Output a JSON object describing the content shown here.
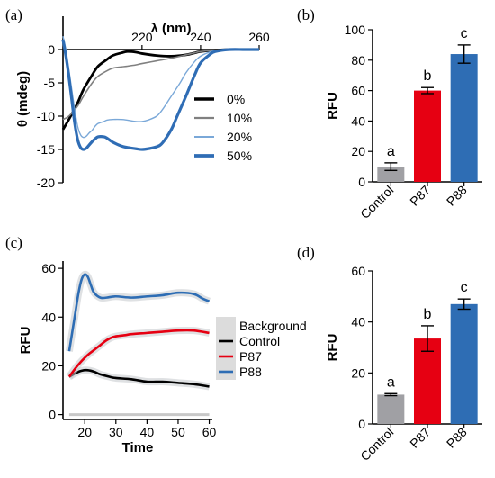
{
  "panels": {
    "a": "(a)",
    "b": "(b)",
    "c": "(c)",
    "d": "(d)"
  },
  "chart_data": [
    {
      "id": "a",
      "type": "line",
      "xlabel": "λ (nm)",
      "ylabel": "θ (mdeg)",
      "xlim": [
        193,
        260
      ],
      "ylim": [
        -20,
        5
      ],
      "xticks": [
        220,
        240,
        260
      ],
      "yticks": [
        0,
        -5,
        -10,
        -15,
        -20
      ],
      "legend_position": "right",
      "series": [
        {
          "name": "0%",
          "color": "#000000",
          "x": [
            193,
            195,
            198,
            200,
            203,
            205,
            208,
            210,
            213,
            215,
            218,
            220,
            225,
            230,
            235,
            238,
            240,
            245,
            250,
            255,
            260
          ],
          "y": [
            -12,
            -10.5,
            -8,
            -6,
            -3.8,
            -2.5,
            -1.5,
            -0.9,
            -0.5,
            -0.3,
            -0.4,
            -0.6,
            -0.9,
            -1.0,
            -0.8,
            -0.5,
            -0.3,
            -0.1,
            0,
            0,
            0
          ]
        },
        {
          "name": "10%",
          "color": "#808080",
          "x": [
            193,
            195,
            198,
            200,
            203,
            205,
            208,
            210,
            213,
            215,
            218,
            220,
            225,
            230,
            235,
            238,
            240,
            245,
            250,
            255,
            260
          ],
          "y": [
            -10.5,
            -10,
            -8.5,
            -7,
            -5,
            -4,
            -3.2,
            -2.8,
            -2.6,
            -2.5,
            -2.3,
            -2.1,
            -1.7,
            -1.3,
            -0.8,
            -0.5,
            -0.3,
            -0.1,
            0,
            0,
            0
          ]
        },
        {
          "name": "20%",
          "color": "#7aa8d8",
          "x": [
            193,
            194,
            195,
            196,
            197,
            198,
            199,
            200,
            201,
            202,
            203,
            204,
            205,
            207,
            208,
            210,
            213,
            215,
            218,
            220,
            222,
            225,
            227,
            230,
            233,
            235,
            238,
            240,
            243,
            245,
            250,
            255,
            260
          ],
          "y": [
            2,
            0,
            -3,
            -6,
            -9,
            -11.5,
            -12.8,
            -13.2,
            -13,
            -12.5,
            -12.1,
            -11.5,
            -11.1,
            -10.8,
            -10.6,
            -10.5,
            -10.5,
            -10.6,
            -10.8,
            -10.8,
            -10.6,
            -10,
            -9,
            -7,
            -5,
            -3.5,
            -1.8,
            -1,
            -0.4,
            -0.2,
            0,
            0,
            0
          ]
        },
        {
          "name": "50%",
          "color": "#2f6db5",
          "x": [
            193,
            194,
            195,
            196,
            197,
            198,
            199,
            200,
            201,
            202,
            203,
            204,
            205,
            207,
            208,
            210,
            213,
            215,
            218,
            220,
            222,
            225,
            227,
            230,
            232,
            235,
            238,
            240,
            243,
            245,
            250,
            255,
            260
          ],
          "y": [
            1.5,
            -1,
            -4,
            -7.5,
            -11,
            -13.5,
            -14.7,
            -15,
            -14.8,
            -14.3,
            -13.8,
            -13.4,
            -13.1,
            -13.1,
            -13.3,
            -13.9,
            -14.5,
            -14.7,
            -14.9,
            -15,
            -14.9,
            -14.6,
            -14,
            -12,
            -10,
            -7,
            -3.8,
            -2,
            -0.8,
            -0.3,
            0,
            0,
            0
          ]
        }
      ]
    },
    {
      "id": "b",
      "type": "bar",
      "ylabel": "RFU",
      "ylim": [
        0,
        100
      ],
      "yticks": [
        0,
        20,
        40,
        60,
        80,
        100
      ],
      "categories": [
        "Control",
        "P87",
        "P88"
      ],
      "values": [
        10,
        60,
        84
      ],
      "errors": [
        2.5,
        2,
        6
      ],
      "colors": [
        "#a0a0a4",
        "#e60012",
        "#2e6db4"
      ],
      "annotations": [
        "a",
        "b",
        "c"
      ]
    },
    {
      "id": "c",
      "type": "line",
      "xlabel": "Time",
      "ylabel": "RFU",
      "xlim": [
        13,
        61
      ],
      "ylim": [
        -2,
        63
      ],
      "xticks": [
        20,
        30,
        40,
        50,
        60
      ],
      "yticks": [
        0,
        20,
        40,
        60
      ],
      "legend_position": "right",
      "series": [
        {
          "name": "Background",
          "color": "#c8c8c8",
          "x": [
            15,
            20,
            25,
            30,
            35,
            40,
            45,
            50,
            55,
            60
          ],
          "y": [
            0,
            0,
            0,
            0,
            0,
            0,
            0,
            0,
            0,
            0
          ]
        },
        {
          "name": "Control",
          "color": "#000000",
          "x": [
            15,
            17,
            19,
            21,
            23,
            25,
            28,
            30,
            35,
            40,
            45,
            50,
            55,
            60
          ],
          "y": [
            15.5,
            17,
            18,
            18.2,
            17.6,
            16.5,
            15.5,
            15,
            14.5,
            13.5,
            13.5,
            13,
            12.5,
            11.5
          ]
        },
        {
          "name": "P87",
          "color": "#e60012",
          "x": [
            15,
            17,
            19,
            21,
            23,
            25,
            27,
            29,
            31,
            33,
            35,
            40,
            45,
            50,
            55,
            60
          ],
          "y": [
            15.5,
            19,
            22,
            24.5,
            26.5,
            28.5,
            30.5,
            31.8,
            32.3,
            32.6,
            33,
            33.5,
            34,
            34.5,
            34.5,
            33.5
          ]
        },
        {
          "name": "P88",
          "color": "#2e6db4",
          "x": [
            15,
            16,
            17,
            18,
            19,
            20,
            21,
            22,
            23,
            25,
            27,
            30,
            35,
            40,
            45,
            50,
            55,
            58,
            60
          ],
          "y": [
            26,
            34,
            42,
            50,
            55.5,
            57.5,
            56.5,
            53,
            50,
            48,
            48,
            48.5,
            48,
            48.5,
            49,
            50,
            49.5,
            47.5,
            46.5
          ]
        }
      ]
    },
    {
      "id": "d",
      "type": "bar",
      "ylabel": "RFU",
      "ylim": [
        0,
        60
      ],
      "yticks": [
        0,
        20,
        40,
        60
      ],
      "categories": [
        "Control",
        "P87",
        "P88"
      ],
      "values": [
        11.5,
        33.5,
        47
      ],
      "errors": [
        0.4,
        5,
        2
      ],
      "colors": [
        "#a0a0a4",
        "#e60012",
        "#2e6db4"
      ],
      "annotations": [
        "a",
        "b",
        "c"
      ]
    }
  ]
}
